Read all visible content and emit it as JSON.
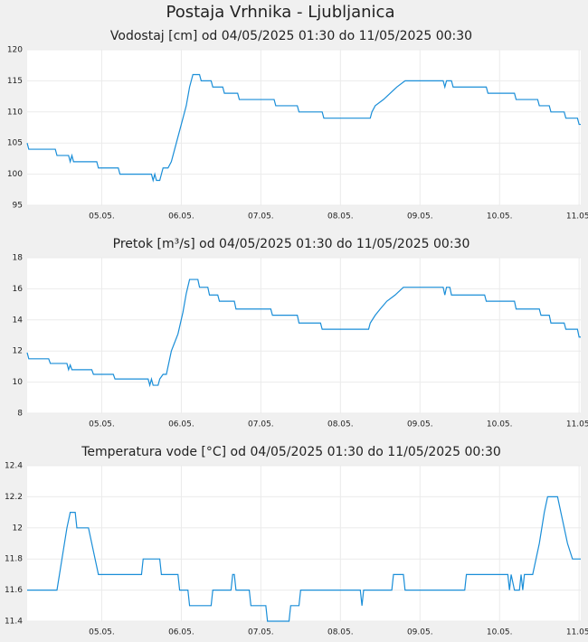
{
  "title": "Postaja Vrhnika - Ljubljanica",
  "chart_data": [
    {
      "type": "line",
      "title": "Vodostaj [cm] od 04/05/2025 01:30 do 11/05/2025 00:30",
      "xlim": [
        "04.05. 01:30",
        "11.05. 00:30"
      ],
      "xticks": [
        {
          "value": "05.05. 00:00",
          "label": "05.05."
        },
        {
          "value": "06.05. 00:00",
          "label": "06.05."
        },
        {
          "value": "07.05. 00:00",
          "label": "07.05."
        },
        {
          "value": "08.05. 00:00",
          "label": "08.05."
        },
        {
          "value": "09.05. 00:00",
          "label": "09.05."
        },
        {
          "value": "10.05. 00:00",
          "label": "10.05."
        },
        {
          "value": "11.05. 00:00",
          "label": "11.05."
        }
      ],
      "ylim": [
        95,
        120
      ],
      "yticks": [
        95,
        100,
        105,
        110,
        115,
        120
      ],
      "grid": true,
      "color": "#1a8ed8",
      "x": [
        "04.05. 01:30",
        "04.05. 02:00",
        "04.05. 10:00",
        "04.05. 10:30",
        "04.05. 14:00",
        "04.05. 14:30",
        "04.05. 15:00",
        "04.05. 15:30",
        "04.05. 22:30",
        "04.05. 23:00",
        "05.05. 05:00",
        "05.05. 05:30",
        "05.05. 15:00",
        "05.05. 15:30",
        "05.05. 16:00",
        "05.05. 16:30",
        "05.05. 17:30",
        "05.05. 18:00",
        "05.05. 18:30",
        "05.05. 20:00",
        "05.05. 21:00",
        "05.05. 22:30",
        "06.05. 00:00",
        "06.05. 01:30",
        "06.05. 02:30",
        "06.05. 03:00",
        "06.05. 03:30",
        "06.05. 05:30",
        "06.05. 06:00",
        "06.05. 09:00",
        "06.05. 09:30",
        "06.05. 12:30",
        "06.05. 13:00",
        "06.05. 17:00",
        "06.05. 17:30",
        "07.05. 04:00",
        "07.05. 04:30",
        "07.05. 11:00",
        "07.05. 11:30",
        "07.05. 18:30",
        "07.05. 19:00",
        "08.05. 09:00",
        "08.05. 09:30",
        "08.05. 10:30",
        "08.05. 13:00",
        "08.05. 15:00",
        "08.05. 17:00",
        "08.05. 19:30",
        "09.05. 07:00",
        "09.05. 07:30",
        "09.05. 08:00",
        "09.05. 09:30",
        "09.05. 10:00",
        "09.05. 20:00",
        "09.05. 20:30",
        "10.05. 04:30",
        "10.05. 05:00",
        "10.05. 11:30",
        "10.05. 12:00",
        "10.05. 15:00",
        "10.05. 15:30",
        "10.05. 19:30",
        "10.05. 20:00",
        "10.05. 23:30",
        "11.05. 00:00",
        "11.05. 00:30"
      ],
      "values": [
        105,
        104,
        104,
        103,
        103,
        102,
        103,
        102,
        102,
        101,
        101,
        100,
        100,
        99,
        100,
        99,
        99,
        100,
        101,
        101,
        102,
        105,
        108,
        111,
        114,
        115,
        116,
        116,
        115,
        115,
        114,
        114,
        113,
        113,
        112,
        112,
        111,
        111,
        110,
        110,
        109,
        109,
        110,
        111,
        112,
        113,
        114,
        115,
        115,
        114,
        115,
        115,
        114,
        114,
        113,
        113,
        112,
        112,
        111,
        111,
        110,
        110,
        109,
        109,
        108,
        108
      ]
    },
    {
      "type": "line",
      "title": "Pretok [m³/s] od 04/05/2025 01:30 do 11/05/2025 00:30",
      "xlim": [
        "04.05. 01:30",
        "11.05. 00:30"
      ],
      "xticks": [
        {
          "value": "05.05. 00:00",
          "label": "05.05."
        },
        {
          "value": "06.05. 00:00",
          "label": "06.05."
        },
        {
          "value": "07.05. 00:00",
          "label": "07.05."
        },
        {
          "value": "08.05. 00:00",
          "label": "08.05."
        },
        {
          "value": "09.05. 00:00",
          "label": "09.05."
        },
        {
          "value": "10.05. 00:00",
          "label": "10.05."
        },
        {
          "value": "11.05. 00:00",
          "label": "11.05."
        }
      ],
      "ylim": [
        8,
        18
      ],
      "yticks": [
        8,
        10,
        12,
        14,
        16,
        18
      ],
      "grid": true,
      "color": "#1a8ed8",
      "x": [
        "04.05. 01:30",
        "04.05. 02:00",
        "04.05. 08:00",
        "04.05. 08:30",
        "04.05. 13:30",
        "04.05. 14:00",
        "04.05. 14:30",
        "04.05. 15:00",
        "04.05. 21:00",
        "04.05. 21:30",
        "05.05. 03:30",
        "05.05. 04:00",
        "05.05. 14:00",
        "05.05. 14:30",
        "05.05. 15:00",
        "05.05. 15:30",
        "05.05. 17:00",
        "05.05. 17:30",
        "05.05. 18:30",
        "05.05. 19:30",
        "05.05. 21:00",
        "05.05. 23:00",
        "06.05. 00:30",
        "06.05. 01:30",
        "06.05. 02:30",
        "06.05. 05:00",
        "06.05. 05:30",
        "06.05. 08:00",
        "06.05. 08:30",
        "06.05. 11:00",
        "06.05. 11:30",
        "06.05. 16:00",
        "06.05. 16:30",
        "07.05. 03:00",
        "07.05. 03:30",
        "07.05. 11:00",
        "07.05. 11:30",
        "07.05. 18:00",
        "07.05. 18:30",
        "08.05. 08:30",
        "08.05. 09:00",
        "08.05. 10:30",
        "08.05. 12:00",
        "08.05. 14:00",
        "08.05. 16:30",
        "08.05. 19:00",
        "09.05. 07:00",
        "09.05. 07:30",
        "09.05. 08:00",
        "09.05. 09:00",
        "09.05. 09:30",
        "09.05. 19:30",
        "09.05. 20:00",
        "10.05. 04:30",
        "10.05. 05:00",
        "10.05. 12:00",
        "10.05. 12:30",
        "10.05. 15:00",
        "10.05. 15:30",
        "10.05. 19:30",
        "10.05. 20:00",
        "10.05. 23:30",
        "11.05. 00:00",
        "11.05. 00:30"
      ],
      "values": [
        11.9,
        11.5,
        11.5,
        11.2,
        11.2,
        10.8,
        11.1,
        10.8,
        10.8,
        10.5,
        10.5,
        10.2,
        10.2,
        9.8,
        10.2,
        9.8,
        9.8,
        10.2,
        10.5,
        10.5,
        12,
        13.1,
        14.5,
        15.7,
        16.6,
        16.6,
        16.1,
        16.1,
        15.6,
        15.6,
        15.2,
        15.2,
        14.7,
        14.7,
        14.3,
        14.3,
        13.8,
        13.8,
        13.4,
        13.4,
        13.8,
        14.3,
        14.7,
        15.2,
        15.6,
        16.1,
        16.1,
        15.6,
        16.1,
        16.1,
        15.6,
        15.6,
        15.2,
        15.2,
        14.7,
        14.7,
        14.3,
        14.3,
        13.8,
        13.8,
        13.4,
        13.4,
        12.9,
        12.9
      ]
    },
    {
      "type": "line",
      "title": "Temperatura vode [°C] od 04/05/2025 01:30 do 11/05/2025 00:30",
      "xlim": [
        "04.05. 01:30",
        "11.05. 00:30"
      ],
      "xticks": [
        {
          "value": "05.05. 00:00",
          "label": "05.05."
        },
        {
          "value": "06.05. 00:00",
          "label": "06.05."
        },
        {
          "value": "07.05. 00:00",
          "label": "07.05."
        },
        {
          "value": "08.05. 00:00",
          "label": "08.05."
        },
        {
          "value": "09.05. 00:00",
          "label": "09.05."
        },
        {
          "value": "10.05. 00:00",
          "label": "10.05."
        },
        {
          "value": "11.05. 00:00",
          "label": "11.05."
        }
      ],
      "ylim": [
        11.4,
        12.4
      ],
      "yticks": [
        11.4,
        11.6,
        11.8,
        12,
        12.2,
        12.4
      ],
      "grid": true,
      "color": "#1a8ed8",
      "x": [
        "04.05. 01:30",
        "04.05. 10:30",
        "04.05. 12:00",
        "04.05. 13:30",
        "04.05. 14:30",
        "04.05. 16:00",
        "04.05. 16:30",
        "04.05. 20:00",
        "04.05. 21:00",
        "04.05. 22:00",
        "04.05. 23:00",
        "05.05. 12:00",
        "05.05. 12:30",
        "05.05. 17:30",
        "05.05. 18:00",
        "05.05. 23:00",
        "05.05. 23:30",
        "06.05. 02:00",
        "06.05. 02:30",
        "06.05. 09:00",
        "06.05. 09:30",
        "06.05. 15:00",
        "06.05. 15:30",
        "06.05. 16:00",
        "06.05. 16:30",
        "06.05. 20:30",
        "06.05. 21:00",
        "07.05. 01:30",
        "07.05. 02:00",
        "07.05. 08:30",
        "07.05. 09:00",
        "07.05. 11:30",
        "07.05. 12:00",
        "08.05. 06:00",
        "08.05. 06:30",
        "08.05. 07:00",
        "08.05. 15:30",
        "08.05. 16:00",
        "08.05. 19:00",
        "08.05. 19:30",
        "09.05. 13:30",
        "09.05. 14:00",
        "10.05. 02:30",
        "10.05. 03:00",
        "10.05. 03:30",
        "10.05. 04:30",
        "10.05. 06:00",
        "10.05. 06:30",
        "10.05. 07:00",
        "10.05. 07:30",
        "10.05. 10:00",
        "10.05. 12:00",
        "10.05. 13:30",
        "10.05. 14:30",
        "10.05. 17:30",
        "10.05. 18:30",
        "10.05. 19:30",
        "10.05. 20:30",
        "10.05. 22:00",
        "11.05. 00:30"
      ],
      "values": [
        11.6,
        11.6,
        11.8,
        12,
        12.1,
        12.1,
        12,
        12,
        11.9,
        11.8,
        11.7,
        11.7,
        11.8,
        11.8,
        11.7,
        11.7,
        11.6,
        11.6,
        11.5,
        11.5,
        11.6,
        11.6,
        11.7,
        11.7,
        11.6,
        11.6,
        11.5,
        11.5,
        11.4,
        11.4,
        11.5,
        11.5,
        11.6,
        11.6,
        11.5,
        11.6,
        11.6,
        11.7,
        11.7,
        11.6,
        11.6,
        11.7,
        11.7,
        11.6,
        11.7,
        11.6,
        11.6,
        11.7,
        11.6,
        11.7,
        11.7,
        11.9,
        12.1,
        12.2,
        12.2,
        12.1,
        12,
        11.9,
        11.8,
        11.8
      ]
    }
  ]
}
